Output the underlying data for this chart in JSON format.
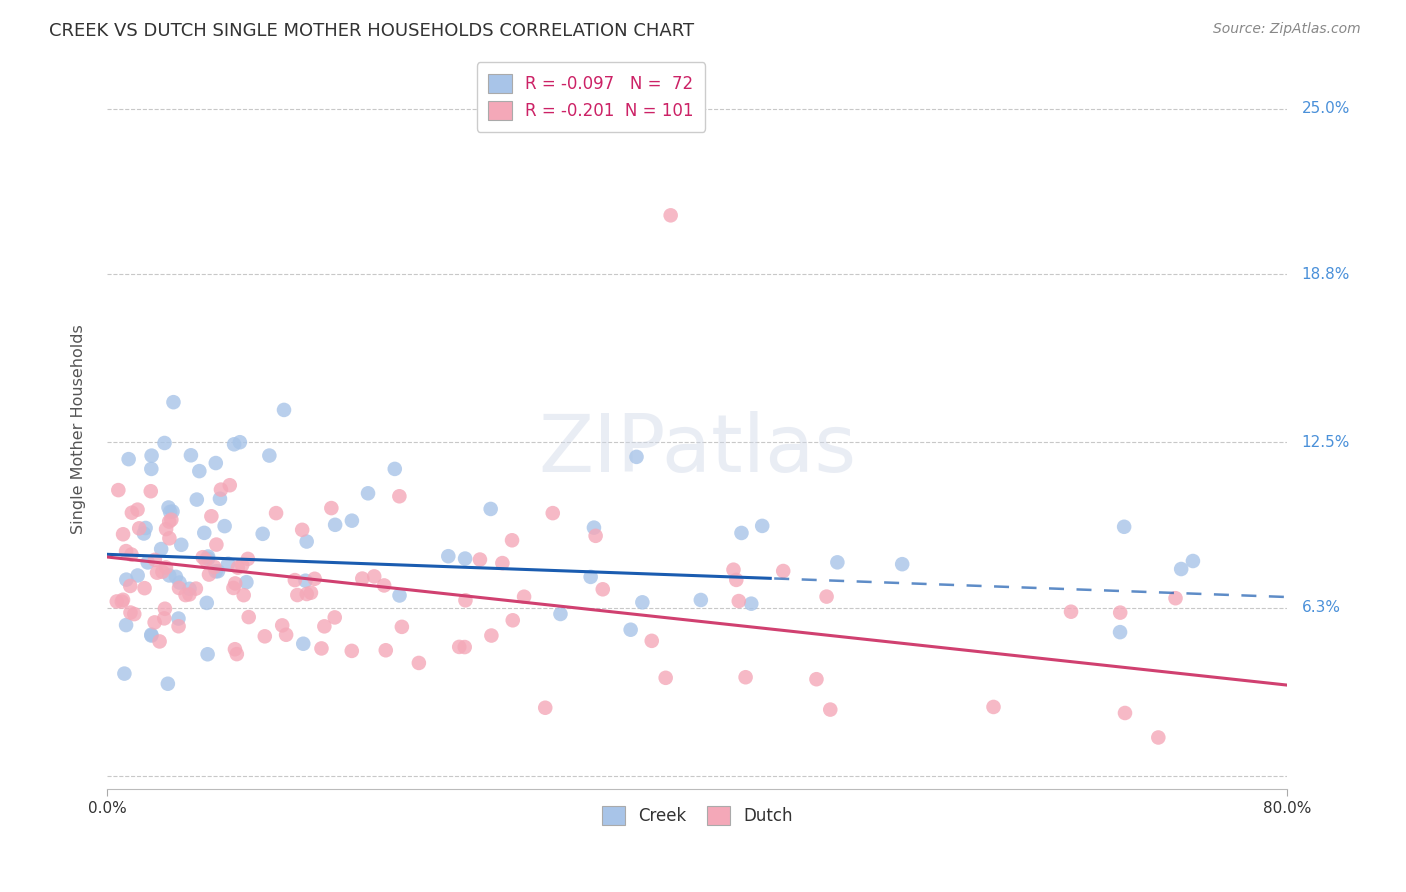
{
  "title": "CREEK VS DUTCH SINGLE MOTHER HOUSEHOLDS CORRELATION CHART",
  "source": "Source: ZipAtlas.com",
  "ylabel": "Single Mother Households",
  "xlim": [
    0.0,
    0.8
  ],
  "ylim": [
    -0.005,
    0.265
  ],
  "creek_color": "#a8c4e8",
  "dutch_color": "#f4a8b8",
  "creek_line_color": "#1a5cb0",
  "dutch_line_color": "#d04070",
  "creek_R": -0.097,
  "creek_N": 72,
  "dutch_R": -0.201,
  "dutch_N": 101,
  "background_color": "#ffffff",
  "grid_color": "#c8c8c8",
  "right_label_color": "#4a90d9",
  "title_color": "#333333",
  "source_color": "#888888",
  "ytick_positions": [
    0.0,
    0.063,
    0.125,
    0.188,
    0.25
  ],
  "ytick_labels": [
    "",
    "6.3%",
    "12.5%",
    "18.8%",
    "25.0%"
  ],
  "legend_label_color": "#cc2266",
  "creek_line_solid_end": 0.45,
  "creek_line_dashed_start": 0.45,
  "dutch_line_start": 0.0,
  "dutch_line_end": 0.8,
  "creek_intercept": 0.083,
  "creek_slope": -0.02,
  "dutch_intercept": 0.082,
  "dutch_slope": -0.06
}
